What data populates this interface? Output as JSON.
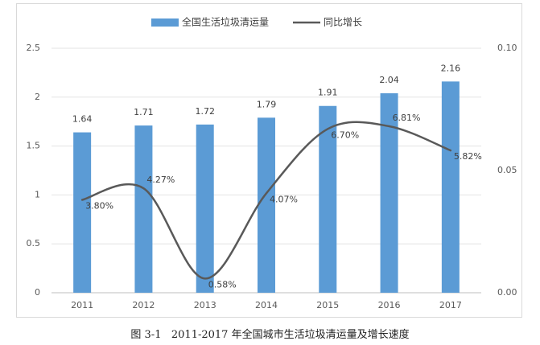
{
  "chart_data": {
    "type": "bar",
    "categories": [
      "2011",
      "2012",
      "2013",
      "2014",
      "2015",
      "2016",
      "2017"
    ],
    "series": [
      {
        "name": "全国生活垃圾清运量",
        "type": "bar",
        "axis": "left",
        "values": [
          1.64,
          1.71,
          1.72,
          1.79,
          1.91,
          2.04,
          2.16
        ],
        "labels": [
          "1.64",
          "1.71",
          "1.72",
          "1.79",
          "1.91",
          "2.04",
          "2.16"
        ],
        "color": "#5b9bd5"
      },
      {
        "name": "同比增长",
        "type": "line",
        "smooth": true,
        "axis": "right",
        "values": [
          0.038,
          0.0427,
          0.0058,
          0.0407,
          0.067,
          0.0681,
          0.0582
        ],
        "labels": [
          "3.80%",
          "4.27%",
          "0.58%",
          "4.07%",
          "6.70%",
          "6.81%",
          "5.82%"
        ],
        "color": "#595959"
      }
    ],
    "y_left": {
      "ylim": [
        0,
        2.5
      ],
      "ticks": [
        "0",
        "0.5",
        "1",
        "1.5",
        "2",
        "2.5"
      ]
    },
    "y_right": {
      "ylim": [
        0,
        0.1
      ],
      "ticks": [
        "0.00",
        "0.05",
        "0.10"
      ]
    },
    "legend_position": "top",
    "grid": true
  },
  "caption": {
    "figure_number": "图 3-1",
    "text": "2011-2017 年全国城市生活垃圾清运量及增长速度"
  }
}
